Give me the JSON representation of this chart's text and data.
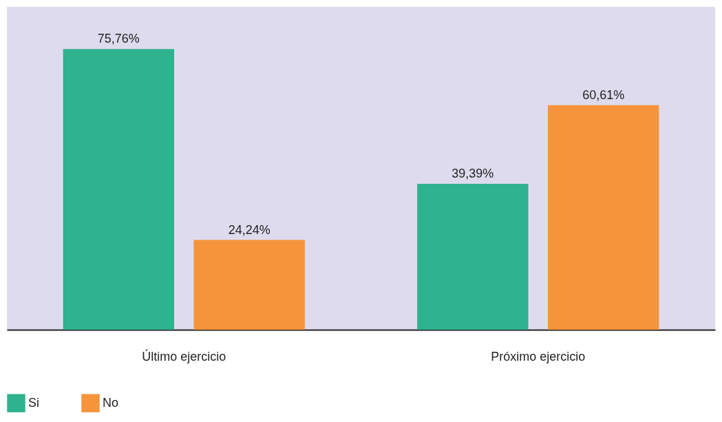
{
  "chart_data": {
    "type": "bar",
    "categories": [
      "Último ejercicio",
      "Próximo ejercicio"
    ],
    "series": [
      {
        "name": "Si",
        "color": "#2fb28e",
        "values": [
          75.76,
          39.39
        ],
        "value_labels": [
          "75,76%",
          "39,39%"
        ]
      },
      {
        "name": "No",
        "color": "#f5943a",
        "values": [
          24.24,
          60.61
        ],
        "value_labels": [
          "24,24%",
          "60,61%"
        ]
      }
    ],
    "legend": "bottom",
    "grid": false
  }
}
